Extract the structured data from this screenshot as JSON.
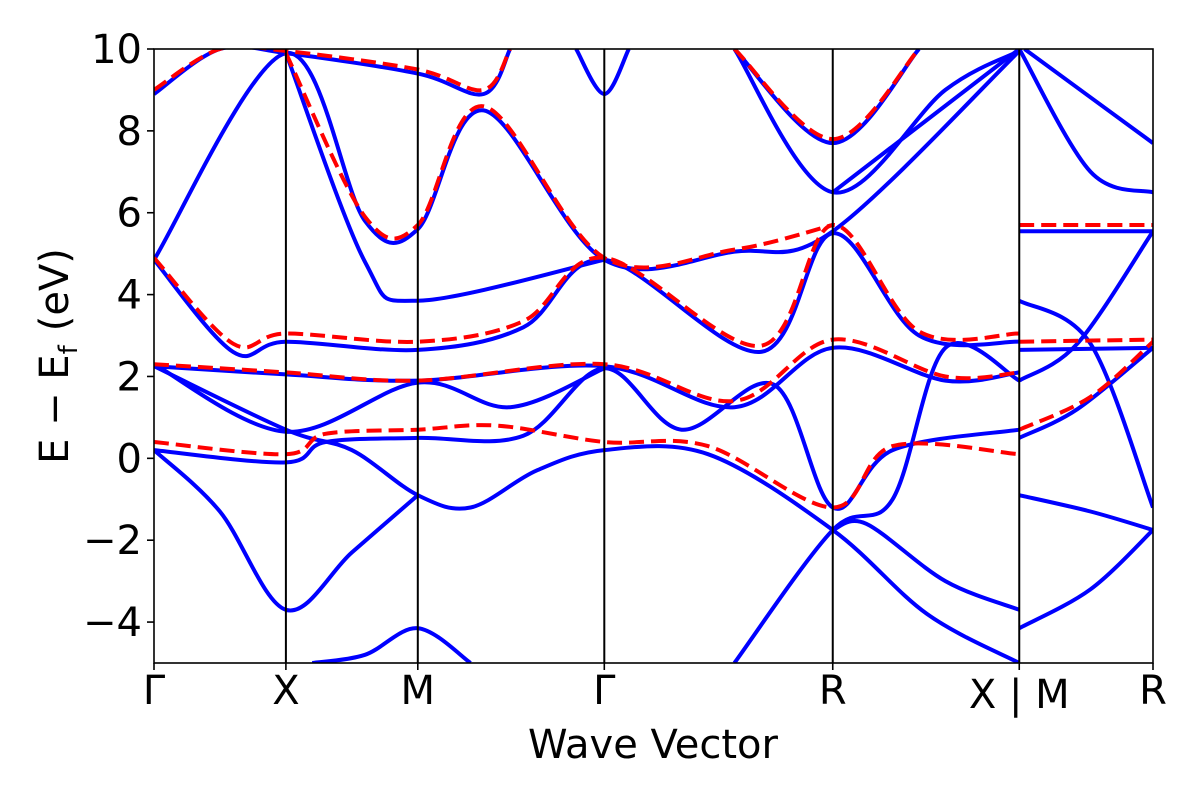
{
  "chart_data": {
    "type": "line",
    "xlabel": "Wave Vector",
    "ylabel": {
      "main": "E − E",
      "subscript": "f",
      "unit": "(eV)"
    },
    "ylim": [
      -5,
      10
    ],
    "y_ticks": [
      -4,
      -2,
      0,
      2,
      4,
      6,
      8,
      10
    ],
    "y_tick_labels": [
      "−4",
      "−2",
      "0",
      "2",
      "4",
      "6",
      "8",
      "10"
    ],
    "k_points": [
      {
        "label": "Γ",
        "x": 0.0
      },
      {
        "label": "X",
        "x": 0.5
      },
      {
        "label": "M",
        "x": 1.0
      },
      {
        "label": "Γ",
        "x": 1.707
      },
      {
        "label": "R",
        "x": 2.573
      },
      {
        "label": "X | M",
        "x": 3.28
      },
      {
        "label": "R",
        "x": 3.787
      }
    ],
    "series": [
      {
        "style": "solid",
        "color": "#0000ff",
        "bands": [
          [
            [
              0,
              0.2
            ],
            [
              0.25,
              -1.3
            ],
            [
              0.5,
              -3.7
            ],
            [
              0.75,
              -2.3
            ],
            [
              1.0,
              -0.9
            ]
          ],
          [
            [
              0,
              2.25
            ],
            [
              0.5,
              0.7
            ],
            [
              0.75,
              0.2
            ],
            [
              1.0,
              -0.9
            ],
            [
              1.2,
              -1.2
            ],
            [
              1.45,
              -0.3
            ],
            [
              1.707,
              0.2
            ],
            [
              2.1,
              0.1
            ],
            [
              2.573,
              -1.75
            ],
            [
              2.93,
              -3.8
            ],
            [
              3.28,
              -5.0
            ]
          ],
          [
            [
              0,
              0.2
            ],
            [
              0.5,
              -0.1
            ],
            [
              0.65,
              0.4
            ],
            [
              1.0,
              0.5
            ],
            [
              1.4,
              0.55
            ],
            [
              1.707,
              2.2
            ],
            [
              2.0,
              0.7
            ],
            [
              2.35,
              1.8
            ],
            [
              2.573,
              -1.2
            ],
            [
              2.8,
              0.2
            ],
            [
              3.28,
              0.7
            ]
          ],
          [
            [
              0,
              2.25
            ],
            [
              0.5,
              2.05
            ],
            [
              1.0,
              1.9
            ],
            [
              1.707,
              2.25
            ],
            [
              2.2,
              1.25
            ],
            [
              2.573,
              2.7
            ],
            [
              3.0,
              1.9
            ],
            [
              3.28,
              2.1
            ]
          ],
          [
            [
              0,
              2.3
            ],
            [
              0.5,
              0.65
            ],
            [
              1.0,
              1.85
            ],
            [
              1.35,
              1.25
            ],
            [
              1.707,
              2.2
            ]
          ],
          [
            [
              0,
              4.85
            ],
            [
              0.3,
              2.6
            ],
            [
              0.5,
              2.85
            ],
            [
              1.0,
              2.65
            ],
            [
              1.4,
              3.2
            ],
            [
              1.707,
              4.85
            ],
            [
              2.3,
              2.6
            ],
            [
              2.573,
              5.5
            ],
            [
              2.9,
              3.0
            ],
            [
              3.28,
              2.85
            ]
          ],
          [
            [
              0,
              4.85
            ],
            [
              0.5,
              9.9
            ],
            [
              0.8,
              5.8
            ],
            [
              1.0,
              5.6
            ],
            [
              1.25,
              8.5
            ],
            [
              1.707,
              4.85
            ],
            [
              2.2,
              5.05
            ],
            [
              2.573,
              5.55
            ],
            [
              3.28,
              9.95
            ]
          ],
          [
            [
              0,
              8.9
            ],
            [
              0.25,
              10.0
            ],
            [
              0.5,
              9.9
            ],
            [
              1.0,
              9.4
            ],
            [
              1.25,
              8.9
            ],
            [
              1.35,
              10.0
            ]
          ],
          [
            [
              0.5,
              9.9
            ],
            [
              0.8,
              4.8
            ],
            [
              1.0,
              3.85
            ],
            [
              1.707,
              4.85
            ]
          ],
          [
            [
              1.6,
              10.0
            ],
            [
              1.707,
              8.9
            ],
            [
              1.8,
              10.0
            ]
          ],
          [
            [
              2.2,
              10.0
            ],
            [
              2.573,
              7.7
            ],
            [
              2.9,
              10.0
            ]
          ],
          [
            [
              2.2,
              10.0
            ],
            [
              2.573,
              6.5
            ],
            [
              3.0,
              9.0
            ],
            [
              3.28,
              9.95
            ]
          ],
          [
            [
              2.573,
              6.5
            ],
            [
              3.28,
              10.0
            ]
          ],
          [
            [
              2.573,
              -1.75
            ],
            [
              2.7,
              -1.6
            ],
            [
              3.0,
              -3.0
            ],
            [
              3.28,
              -3.7
            ]
          ],
          [
            [
              1.2,
              -5.0
            ],
            [
              1.0,
              -4.15
            ],
            [
              0.8,
              -4.8
            ],
            [
              0.6,
              -5.0
            ]
          ],
          [
            [
              2.2,
              -5.0
            ],
            [
              2.573,
              -1.75
            ],
            [
              2.8,
              -1.0
            ],
            [
              3.0,
              2.7
            ],
            [
              3.28,
              1.9
            ]
          ],
          [
            [
              3.28,
              5.55
            ],
            [
              3.787,
              5.55
            ]
          ],
          [
            [
              3.28,
              2.65
            ],
            [
              3.787,
              2.7
            ]
          ],
          [
            [
              3.28,
              0.5
            ],
            [
              3.5,
              1.2
            ],
            [
              3.787,
              2.7
            ]
          ],
          [
            [
              3.28,
              3.85
            ],
            [
              3.55,
              2.8
            ],
            [
              3.787,
              -1.2
            ]
          ],
          [
            [
              3.28,
              1.9
            ],
            [
              3.5,
              2.8
            ],
            [
              3.787,
              5.55
            ]
          ],
          [
            [
              3.28,
              -0.9
            ],
            [
              3.55,
              -1.3
            ],
            [
              3.787,
              -1.75
            ]
          ],
          [
            [
              3.28,
              -4.15
            ],
            [
              3.55,
              -3.2
            ],
            [
              3.787,
              -1.75
            ]
          ],
          [
            [
              3.28,
              10.0
            ],
            [
              3.55,
              7.0
            ],
            [
              3.787,
              6.5
            ]
          ],
          [
            [
              3.3,
              10.0
            ],
            [
              3.787,
              7.7
            ]
          ]
        ]
      },
      {
        "style": "dashed",
        "color": "#ff0000",
        "bands": [
          [
            [
              0,
              0.4
            ],
            [
              0.5,
              0.1
            ],
            [
              0.65,
              0.6
            ],
            [
              1.0,
              0.7
            ],
            [
              1.3,
              0.8
            ],
            [
              1.707,
              0.4
            ],
            [
              2.1,
              0.3
            ],
            [
              2.573,
              -1.2
            ],
            [
              2.8,
              0.3
            ],
            [
              3.28,
              0.1
            ]
          ],
          [
            [
              0,
              2.3
            ],
            [
              0.5,
              2.1
            ],
            [
              1.0,
              1.9
            ],
            [
              1.707,
              2.3
            ],
            [
              2.2,
              1.4
            ],
            [
              2.573,
              2.9
            ],
            [
              3.0,
              2.0
            ],
            [
              3.28,
              2.1
            ]
          ],
          [
            [
              0,
              4.9
            ],
            [
              0.3,
              2.8
            ],
            [
              0.5,
              3.05
            ],
            [
              1.0,
              2.85
            ],
            [
              1.4,
              3.35
            ],
            [
              1.707,
              4.9
            ],
            [
              2.3,
              2.75
            ],
            [
              2.573,
              5.7
            ],
            [
              2.9,
              3.1
            ],
            [
              3.28,
              3.05
            ]
          ],
          [
            [
              0,
              9.0
            ],
            [
              0.25,
              10.0
            ],
            [
              0.5,
              9.95
            ],
            [
              1.0,
              9.5
            ],
            [
              1.25,
              9.0
            ],
            [
              1.35,
              10.0
            ]
          ],
          [
            [
              0.5,
              9.9
            ],
            [
              0.8,
              5.9
            ],
            [
              1.0,
              5.7
            ],
            [
              1.25,
              8.6
            ],
            [
              1.707,
              4.9
            ],
            [
              2.2,
              5.1
            ],
            [
              2.573,
              5.7
            ]
          ],
          [
            [
              2.2,
              10.0
            ],
            [
              2.573,
              7.8
            ],
            [
              2.9,
              10.0
            ]
          ],
          [
            [
              3.28,
              5.7
            ],
            [
              3.787,
              5.7
            ]
          ],
          [
            [
              3.28,
              2.85
            ],
            [
              3.787,
              2.9
            ]
          ],
          [
            [
              3.28,
              0.7
            ],
            [
              3.55,
              1.5
            ],
            [
              3.787,
              2.85
            ]
          ]
        ]
      }
    ]
  }
}
